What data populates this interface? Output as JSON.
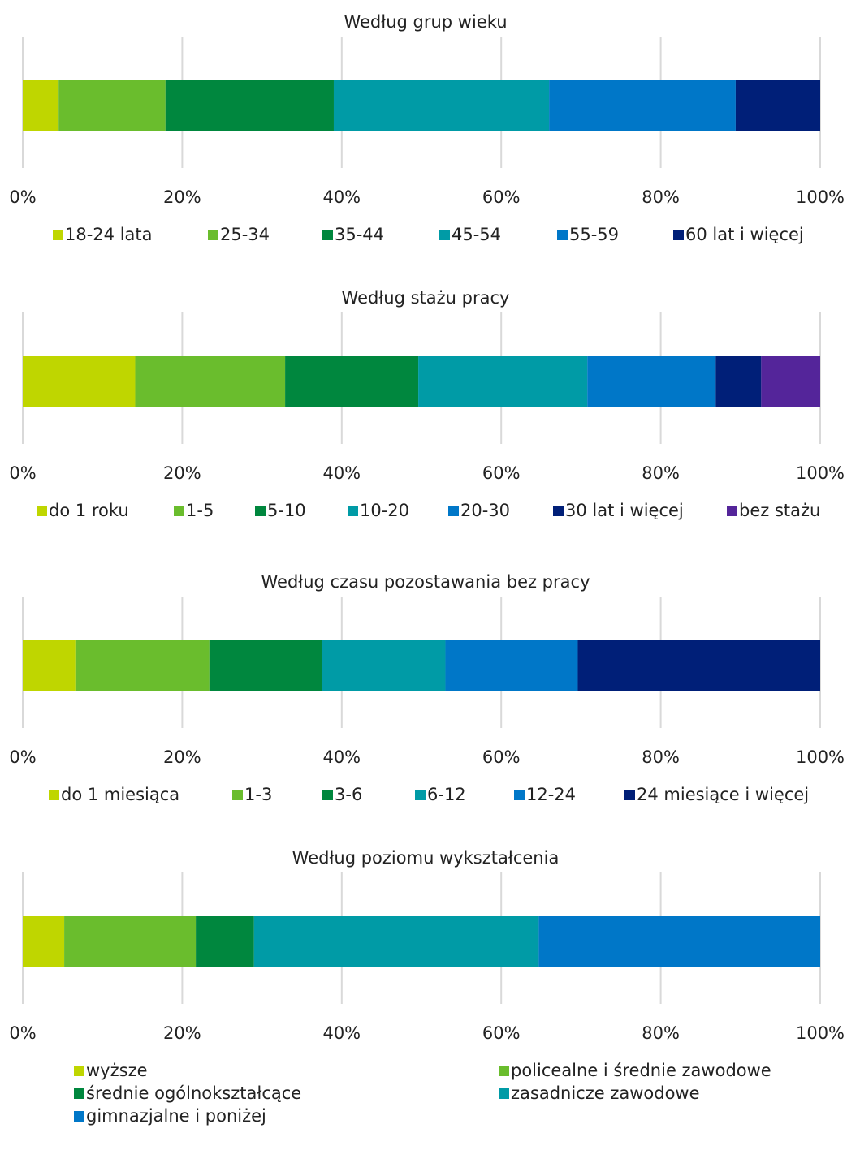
{
  "colors": {
    "lime": "#BFD600",
    "green": "#6ABD2D",
    "darkgreen": "#00873E",
    "teal": "#009BA6",
    "blue": "#0077C8",
    "navy": "#001F78",
    "purple": "#54259A",
    "grid": "#D9D9D9",
    "text": "#222222"
  },
  "chart_data": [
    {
      "type": "bar",
      "orientation": "horizontal",
      "stacked": true,
      "title": "Według grup wieku",
      "xlim": [
        0,
        100
      ],
      "ticks": [
        "0%",
        "20%",
        "40%",
        "60%",
        "80%",
        "100%"
      ],
      "grid": true,
      "legend_position": "bottom",
      "series": [
        {
          "name": "18-24 lata",
          "value": 4.5,
          "color": "#BFD600"
        },
        {
          "name": "25-34",
          "value": 13.4,
          "color": "#6ABD2D"
        },
        {
          "name": "35-44",
          "value": 21.1,
          "color": "#00873E"
        },
        {
          "name": "45-54",
          "value": 27.0,
          "color": "#009BA6"
        },
        {
          "name": "55-59",
          "value": 23.4,
          "color": "#0077C8"
        },
        {
          "name": "60 lat i więcej",
          "value": 10.6,
          "color": "#001F78"
        }
      ]
    },
    {
      "type": "bar",
      "orientation": "horizontal",
      "stacked": true,
      "title": "Według stażu pracy",
      "xlim": [
        0,
        100
      ],
      "ticks": [
        "0%",
        "20%",
        "40%",
        "60%",
        "80%",
        "100%"
      ],
      "grid": true,
      "legend_position": "bottom",
      "series": [
        {
          "name": "do 1 roku",
          "value": 14.1,
          "color": "#BFD600"
        },
        {
          "name": "1-5",
          "value": 18.8,
          "color": "#6ABD2D"
        },
        {
          "name": "5-10",
          "value": 16.7,
          "color": "#00873E"
        },
        {
          "name": "10-20",
          "value": 21.2,
          "color": "#009BA6"
        },
        {
          "name": "20-30",
          "value": 16.1,
          "color": "#0077C8"
        },
        {
          "name": "30 lat i więcej",
          "value": 5.7,
          "color": "#001F78"
        },
        {
          "name": "bez stażu",
          "value": 7.4,
          "color": "#54259A"
        }
      ]
    },
    {
      "type": "bar",
      "orientation": "horizontal",
      "stacked": true,
      "title": "Według czasu pozostawania bez pracy",
      "xlim": [
        0,
        100
      ],
      "ticks": [
        "0%",
        "20%",
        "40%",
        "60%",
        "80%",
        "100%"
      ],
      "grid": true,
      "legend_position": "bottom",
      "series": [
        {
          "name": "do 1 miesiąca",
          "value": 6.6,
          "color": "#BFD600"
        },
        {
          "name": "1-3",
          "value": 16.8,
          "color": "#6ABD2D"
        },
        {
          "name": "3-6",
          "value": 14.1,
          "color": "#00873E"
        },
        {
          "name": "6-12",
          "value": 15.5,
          "color": "#009BA6"
        },
        {
          "name": "12-24",
          "value": 16.6,
          "color": "#0077C8"
        },
        {
          "name": "24 miesiące i więcej",
          "value": 30.4,
          "color": "#001F78"
        }
      ]
    },
    {
      "type": "bar",
      "orientation": "horizontal",
      "stacked": true,
      "title": "Według poziomu wykształcenia",
      "xlim": [
        0,
        100
      ],
      "ticks": [
        "0%",
        "20%",
        "40%",
        "60%",
        "80%",
        "100%"
      ],
      "grid": true,
      "legend_position": "bottom",
      "series": [
        {
          "name": "wyższe",
          "value": 5.2,
          "color": "#BFD600"
        },
        {
          "name": "policealne i średnie zawodowe",
          "value": 16.5,
          "color": "#6ABD2D"
        },
        {
          "name": "średnie ogólnokształcące",
          "value": 7.3,
          "color": "#00873E"
        },
        {
          "name": "zasadnicze zawodowe",
          "value": 35.7,
          "color": "#009BA6"
        },
        {
          "name": "gimnazjalne i poniżej",
          "value": 35.3,
          "color": "#0077C8"
        }
      ]
    }
  ]
}
